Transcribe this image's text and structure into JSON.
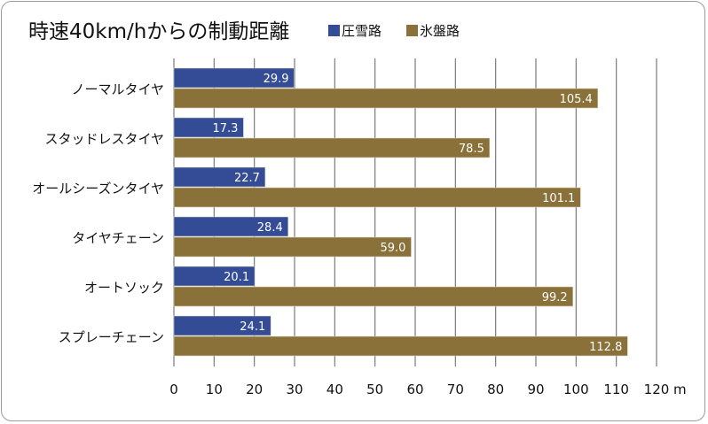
{
  "chart_data": {
    "type": "bar",
    "orientation": "horizontal",
    "title": "時速40km/hからの制動距離",
    "categories": [
      "ノーマルタイヤ",
      "スタッドレスタイヤ",
      "オールシーズンタイヤ",
      "タイヤチェーン",
      "オートソック",
      "スプレーチェーン"
    ],
    "series": [
      {
        "name": "圧雪路",
        "color": "#344b96",
        "values": [
          29.9,
          17.3,
          22.7,
          28.4,
          20.1,
          24.1
        ],
        "labels": [
          "29.9",
          "17.3",
          "22.7",
          "28.4",
          "20.1",
          "24.1"
        ]
      },
      {
        "name": "氷盤路",
        "color": "#8a7039",
        "values": [
          105.4,
          78.5,
          101.1,
          59.0,
          99.2,
          112.8
        ],
        "labels": [
          "105.4",
          "78.5",
          "101.1",
          "59.0",
          "99.2",
          "112.8"
        ]
      }
    ],
    "xlabel": "m",
    "xlim": [
      0,
      120
    ],
    "xticks": [
      "0",
      "10",
      "20",
      "30",
      "40",
      "50",
      "60",
      "70",
      "80",
      "90",
      "100",
      "110",
      "120"
    ],
    "grid": true,
    "legend": "top-right"
  }
}
